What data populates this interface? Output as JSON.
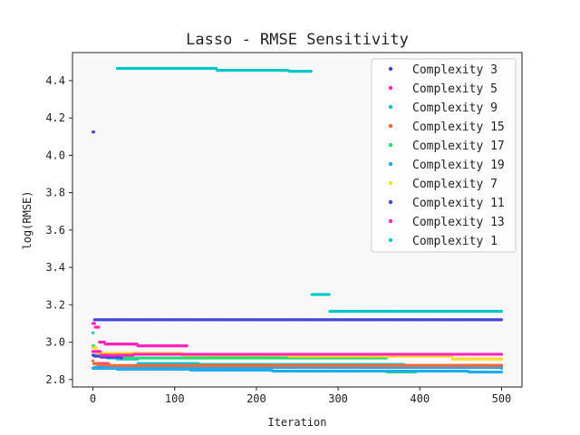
{
  "chart_data": {
    "type": "scatter",
    "title": "Lasso - RMSE Sensitivity",
    "xlabel": "Iteration",
    "ylabel": "log(RMSE)",
    "xlim": [
      -25,
      525
    ],
    "ylim": [
      2.76,
      4.55
    ],
    "x_ticks": [
      0,
      100,
      200,
      300,
      400,
      500
    ],
    "y_ticks": [
      2.8,
      3.0,
      3.2,
      3.4,
      3.6,
      3.8,
      4.0,
      4.2,
      4.4
    ],
    "grid": false,
    "legend_position": "top-right",
    "series": [
      {
        "name": "Complexity 3",
        "color": "#4444dd",
        "steps": [
          [
            0,
            4.125
          ],
          [
            2,
            3.12
          ],
          [
            500,
            3.12
          ]
        ]
      },
      {
        "name": "Complexity 5",
        "color": "#ff22bb",
        "steps": [
          [
            0,
            3.1
          ],
          [
            3,
            3.08
          ],
          [
            8,
            3.0
          ],
          [
            15,
            2.99
          ],
          [
            55,
            2.98
          ],
          [
            115,
            2.98
          ]
        ]
      },
      {
        "name": "Complexity 9",
        "color": "#00c8c8",
        "steps": [
          [
            0,
            3.05
          ],
          [
            1,
            2.97
          ],
          [
            4,
            2.93
          ],
          [
            18,
            2.915
          ],
          [
            30,
            2.91
          ],
          [
            55,
            2.91
          ]
        ]
      },
      {
        "name": "Complexity 15",
        "color": "#ff6633",
        "steps": [
          [
            0,
            2.9
          ],
          [
            1,
            2.885
          ],
          [
            6,
            2.88
          ],
          [
            20,
            2.875
          ],
          [
            500,
            2.875
          ]
        ]
      },
      {
        "name": "Complexity 17",
        "color": "#22dd77",
        "steps": [
          [
            0,
            2.98
          ],
          [
            2,
            2.93
          ],
          [
            10,
            2.92
          ],
          [
            40,
            2.915
          ],
          [
            200,
            2.915
          ],
          [
            360,
            2.84
          ],
          [
            395,
            2.84
          ]
        ]
      },
      {
        "name": "Complexity 19",
        "color": "#22aaee",
        "steps": [
          [
            0,
            2.86
          ],
          [
            30,
            2.855
          ],
          [
            120,
            2.85
          ],
          [
            220,
            2.845
          ],
          [
            300,
            2.845
          ],
          [
            460,
            2.84
          ],
          [
            500,
            2.84
          ]
        ]
      },
      {
        "name": "Complexity 7",
        "color": "#ffdd22",
        "steps": [
          [
            0,
            2.97
          ],
          [
            5,
            2.94
          ],
          [
            110,
            2.93
          ],
          [
            240,
            2.925
          ],
          [
            440,
            2.91
          ],
          [
            500,
            2.91
          ]
        ]
      },
      {
        "name": "Complexity 11",
        "color": "#4444dd",
        "steps": [
          [
            0,
            2.93
          ],
          [
            2,
            2.925
          ],
          [
            10,
            2.92
          ],
          [
            35,
            2.915
          ]
        ]
      },
      {
        "name": "Complexity 13",
        "color": "#ff22bb",
        "steps": [
          [
            0,
            2.95
          ],
          [
            10,
            2.93
          ],
          [
            50,
            2.935
          ],
          [
            240,
            2.935
          ],
          [
            500,
            2.935
          ]
        ]
      },
      {
        "name": "Complexity 1",
        "color": "#00c8c8",
        "steps": [
          [
            30,
            4.465
          ],
          [
            152,
            4.455
          ],
          [
            240,
            4.45
          ],
          [
            268,
            4.45
          ],
          [
            268,
            3.255
          ],
          [
            290,
            3.255
          ],
          [
            290,
            3.165
          ],
          [
            500,
            3.165
          ]
        ]
      }
    ],
    "extra_bands": [
      {
        "color": "#ff22bb",
        "steps": [
          [
            5,
            2.885
          ],
          [
            20,
            2.87
          ],
          [
            500,
            2.87
          ]
        ]
      },
      {
        "color": "#4444dd",
        "steps": [
          [
            55,
            2.875
          ],
          [
            500,
            2.875
          ]
        ]
      },
      {
        "color": "#00c8c8",
        "steps": [
          [
            55,
            2.885
          ],
          [
            130,
            2.88
          ],
          [
            380,
            2.88
          ]
        ]
      },
      {
        "color": "#22aaee",
        "steps": [
          [
            2,
            2.865
          ],
          [
            500,
            2.86
          ]
        ]
      }
    ]
  }
}
